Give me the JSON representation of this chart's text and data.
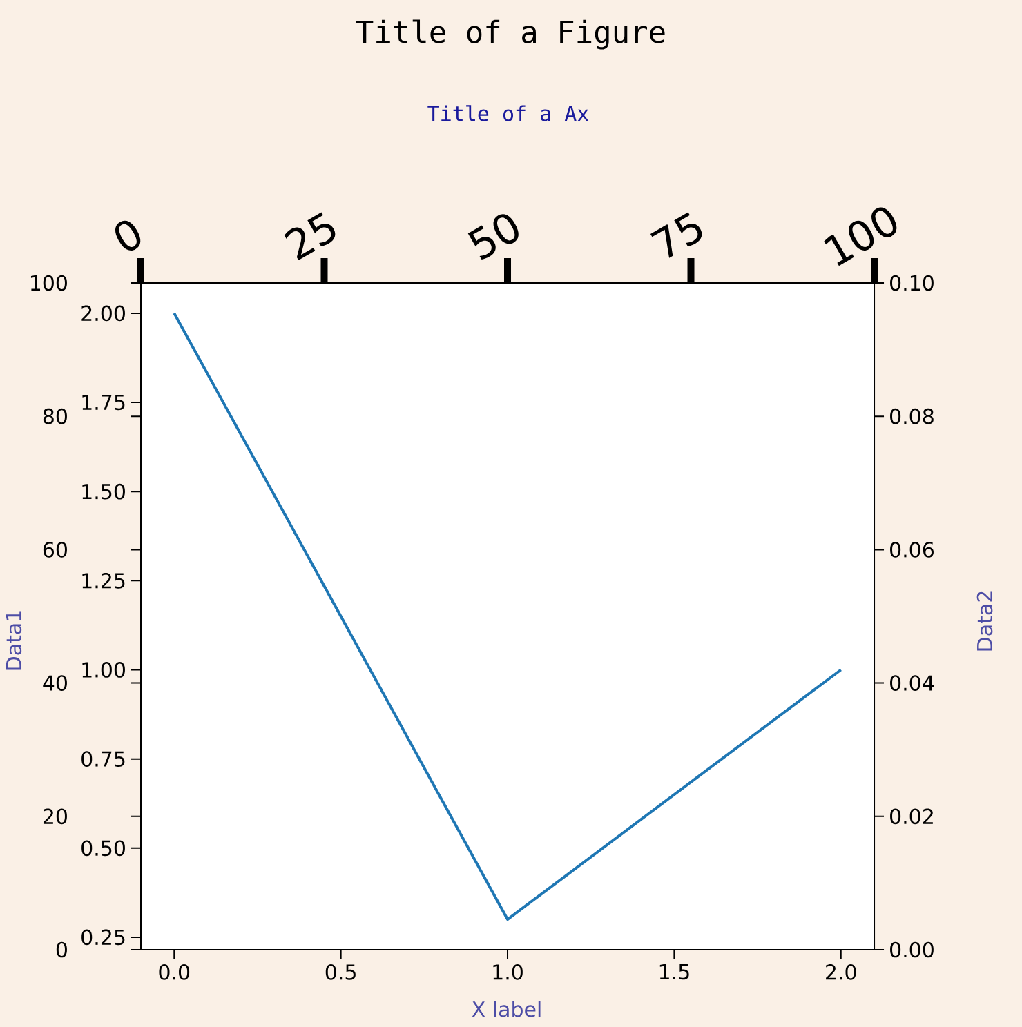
{
  "chart_data": {
    "type": "line",
    "title": "Title of a Figure",
    "subtitle": "Title of a Ax",
    "xlabel": "X label",
    "ylabel": "Data1",
    "y2label": "Data2",
    "x": [
      0,
      1,
      2
    ],
    "series": [
      {
        "color": "#1f77b4",
        "values": [
          2.0,
          0.3,
          1.0
        ]
      }
    ],
    "line_style": "solid",
    "xlim": [
      -0.1,
      2.1
    ],
    "xticks": [
      {
        "value": 0,
        "label": "0.0"
      },
      {
        "value": 0.5,
        "label": "0.5"
      },
      {
        "value": 1,
        "label": "1.0"
      },
      {
        "value": 1.5,
        "label": "1.5"
      },
      {
        "value": 2,
        "label": "2.0"
      }
    ],
    "ylim": [
      0.215,
      2.085
    ],
    "yticks": [
      {
        "value": 0.25,
        "label": "0.25"
      },
      {
        "value": 0.5,
        "label": "0.50"
      },
      {
        "value": 0.75,
        "label": "0.75"
      },
      {
        "value": 1,
        "label": "1.00"
      },
      {
        "value": 1.25,
        "label": "1.25"
      },
      {
        "value": 1.5,
        "label": "1.50"
      },
      {
        "value": 1.75,
        "label": "1.75"
      },
      {
        "value": 2,
        "label": "2.00"
      }
    ],
    "y3lim": [
      0,
      100
    ],
    "y3ticks": [
      0,
      20,
      40,
      60,
      80,
      100
    ],
    "y2lim": [
      0,
      0.1
    ],
    "y2ticks": [
      {
        "value": 0,
        "label": "0.00"
      },
      {
        "value": 0.02,
        "label": "0.02"
      },
      {
        "value": 0.04,
        "label": "0.04"
      },
      {
        "value": 0.06,
        "label": "0.06"
      },
      {
        "value": 0.08,
        "label": "0.08"
      },
      {
        "value": 0.1,
        "label": "0.10"
      }
    ],
    "x2lim": [
      0,
      100
    ],
    "x2ticks": [
      0,
      25,
      50,
      75,
      100
    ]
  }
}
